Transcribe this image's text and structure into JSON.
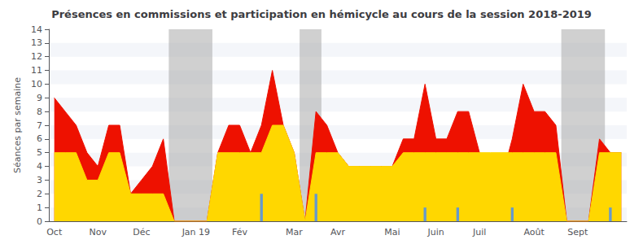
{
  "chart_data": {
    "type": "area",
    "title": "Présences en commissions et participation en hémicycle au cours de la session 2018-2019",
    "y_label": "Séances par semaine",
    "categories": [
      "Oct",
      null,
      null,
      null,
      "Nov",
      null,
      null,
      null,
      "Déc",
      null,
      null,
      null,
      null,
      "Jan 19",
      null,
      null,
      null,
      "Fév",
      null,
      null,
      null,
      null,
      "Mar",
      null,
      null,
      null,
      "Avr",
      null,
      null,
      null,
      null,
      "Mai",
      null,
      null,
      null,
      "Juin",
      null,
      null,
      null,
      "Juil",
      null,
      null,
      null,
      null,
      "Août",
      null,
      null,
      null,
      "Sept",
      null,
      null,
      null,
      null
    ],
    "series": [
      {
        "type": "area",
        "color": "#EE1100",
        "values": [
          9,
          8,
          7,
          5,
          4,
          7,
          7,
          2,
          3,
          4,
          6,
          0,
          0,
          0,
          0,
          5,
          7,
          7,
          5,
          7,
          11,
          7,
          5,
          0,
          8,
          7,
          5,
          4,
          4,
          4,
          4,
          4,
          6,
          6,
          10,
          6,
          6,
          8,
          8,
          5,
          4,
          3,
          6,
          10,
          8,
          8,
          7,
          0,
          0,
          0,
          6,
          5,
          5
        ]
      },
      {
        "type": "area",
        "color": "#FFD700",
        "values": [
          5,
          5,
          5,
          3,
          3,
          5,
          5,
          2,
          2,
          2,
          2,
          0,
          0,
          0,
          0,
          5,
          5,
          5,
          5,
          5,
          7,
          7,
          5,
          0,
          5,
          5,
          5,
          4,
          4,
          4,
          4,
          4,
          5,
          5,
          5,
          5,
          5,
          5,
          5,
          5,
          5,
          5,
          5,
          5,
          5,
          5,
          5,
          0,
          0,
          0,
          5,
          5,
          5
        ]
      },
      {
        "type": "bar",
        "color": "#6699CC",
        "values": [
          null,
          null,
          null,
          null,
          null,
          null,
          null,
          null,
          null,
          null,
          null,
          null,
          null,
          null,
          null,
          null,
          null,
          null,
          null,
          2,
          null,
          null,
          null,
          null,
          2,
          null,
          null,
          null,
          null,
          null,
          null,
          null,
          null,
          null,
          1,
          null,
          null,
          1,
          null,
          null,
          null,
          null,
          1,
          null,
          null,
          null,
          null,
          null,
          null,
          null,
          null,
          1,
          null
        ]
      }
    ],
    "bands": [
      {
        "start": 11,
        "end": 15,
        "color": "#aaaaaa"
      },
      {
        "start": 23,
        "end": 25,
        "color": "#aaaaaa"
      },
      {
        "start": 47,
        "end": 51,
        "color": "#aaaaaa"
      }
    ],
    "ylim": [
      0,
      14
    ],
    "yticks": [
      0,
      1,
      2,
      3,
      4,
      5,
      6,
      7,
      8,
      9,
      10,
      11,
      12,
      13,
      14
    ],
    "grid": false
  }
}
